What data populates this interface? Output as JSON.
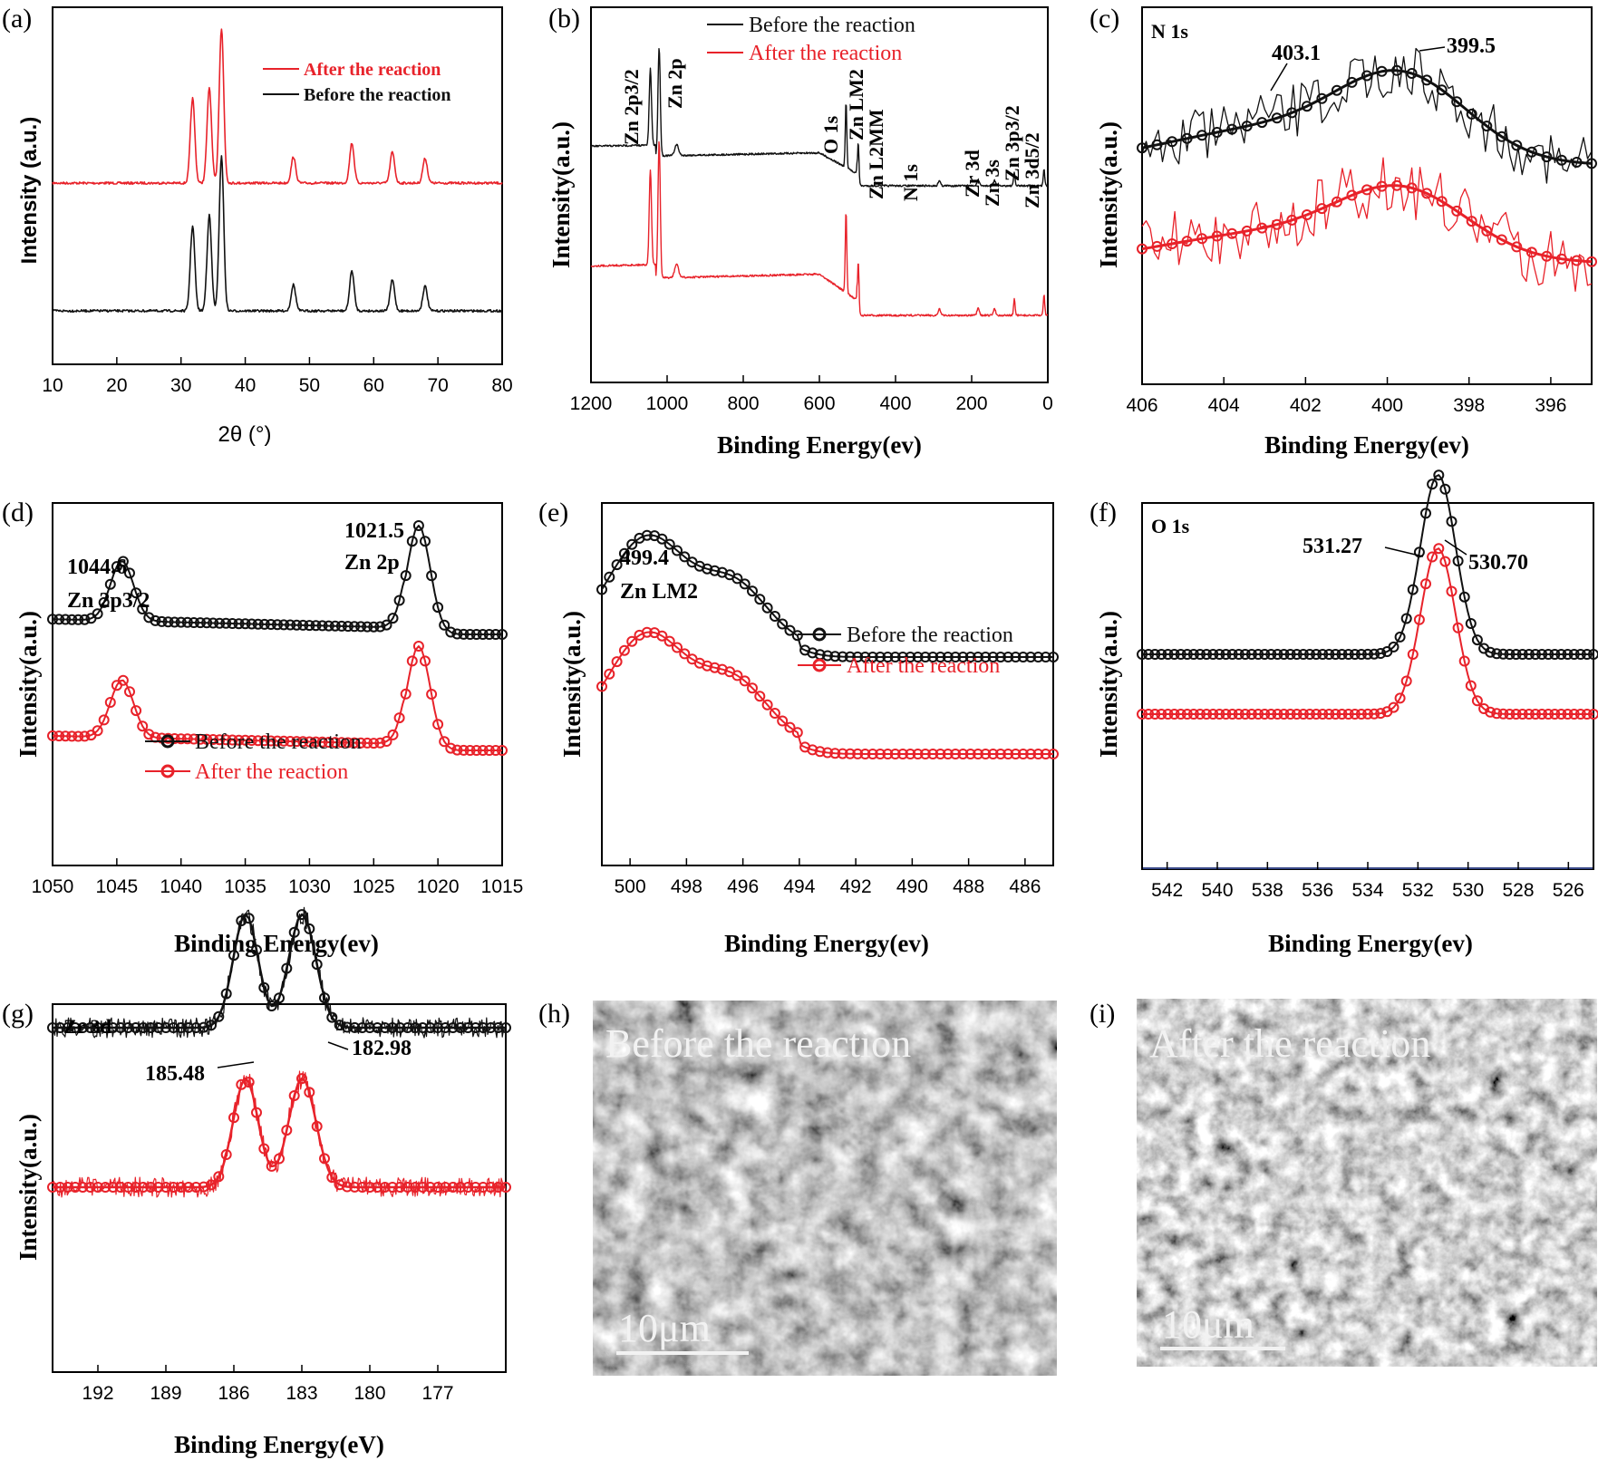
{
  "colors": {
    "before": "#111111",
    "after": "#e8222a",
    "axis": "#000000"
  },
  "chart_data": [
    {
      "id": "a",
      "panel_label": "(a)",
      "type": "line",
      "xlabel": "2θ (°)",
      "ylabel": "Intensity (a.u.)",
      "xlim": [
        10,
        80
      ],
      "xticks": [
        10,
        20,
        30,
        40,
        50,
        60,
        70,
        80
      ],
      "legend": [
        "After the reaction",
        "Before the reaction"
      ],
      "peaks_2theta": [
        31.8,
        34.4,
        36.3,
        47.5,
        56.6,
        62.9,
        68.0
      ]
    },
    {
      "id": "b",
      "panel_label": "(b)",
      "type": "line",
      "xlabel": "Binding Energy(ev)",
      "ylabel": "Intensity(a.u.)",
      "xlim": [
        1200,
        0
      ],
      "xticks": [
        1200,
        1000,
        800,
        600,
        400,
        200,
        0
      ],
      "legend": [
        "Before the reaction",
        "After the reaction"
      ],
      "annotations": [
        "Zn 2p3/2",
        "Zn 2p",
        "O 1s",
        "Zn LM2",
        "Zn L2MM",
        "N 1s",
        "Zr 3d",
        "Zn 3s",
        "Zn 3p3/2",
        "Zn 3d5/2"
      ]
    },
    {
      "id": "c",
      "panel_label": "(c)",
      "type": "line",
      "title": "N 1s",
      "xlabel": "Binding Energy(ev)",
      "ylabel": "Intensity(a.u.)",
      "xlim": [
        406,
        395
      ],
      "xticks": [
        406,
        404,
        402,
        400,
        398,
        396
      ],
      "peaks": [
        "403.1",
        "399.5"
      ]
    },
    {
      "id": "d",
      "panel_label": "(d)",
      "type": "line",
      "xlabel": "Binding Energy(ev)",
      "ylabel": "Intensity(a.u.)",
      "xlim": [
        1050,
        1015
      ],
      "xticks": [
        1050,
        1045,
        1040,
        1035,
        1030,
        1025,
        1020,
        1015
      ],
      "peaks": [
        {
          "value": "1044.6",
          "label": "Zn 2p3/2"
        },
        {
          "value": "1021.5",
          "label": "Zn 2p"
        }
      ],
      "legend": [
        "Before the reaction",
        "After the reaction"
      ]
    },
    {
      "id": "e",
      "panel_label": "(e)",
      "type": "line",
      "xlabel": "Binding Energy(ev)",
      "ylabel": "Intensity(a.u.)",
      "xlim": [
        501,
        485
      ],
      "xticks": [
        500,
        498,
        496,
        494,
        492,
        490,
        488,
        486
      ],
      "peaks": [
        {
          "value": "499.4",
          "label": "Zn LM2"
        }
      ],
      "legend": [
        "Before the reaction",
        "After the reaction"
      ]
    },
    {
      "id": "f",
      "panel_label": "(f)",
      "type": "line",
      "title": "O 1s",
      "xlabel": "Binding Energy(ev)",
      "ylabel": "Intensity(a.u.)",
      "xlim": [
        543,
        525
      ],
      "xticks": [
        542,
        540,
        538,
        536,
        534,
        532,
        530,
        528,
        526
      ],
      "peaks": [
        "531.27",
        "530.70"
      ]
    },
    {
      "id": "g",
      "panel_label": "(g)",
      "type": "line",
      "title": "Zr 3d",
      "xlabel": "Binding Energy(eV)",
      "ylabel": "Intensity(a.u.)",
      "xlim": [
        194,
        174
      ],
      "xticks": [
        192,
        189,
        186,
        183,
        180,
        177
      ],
      "peaks": [
        "185.48",
        "182.98"
      ]
    }
  ],
  "images": [
    {
      "id": "h",
      "panel_label": "(h)",
      "caption": "Before the reaction",
      "scale_bar": "10μm"
    },
    {
      "id": "i",
      "panel_label": "(i)",
      "caption": "After the reaction",
      "scale_bar": "10μm"
    }
  ]
}
